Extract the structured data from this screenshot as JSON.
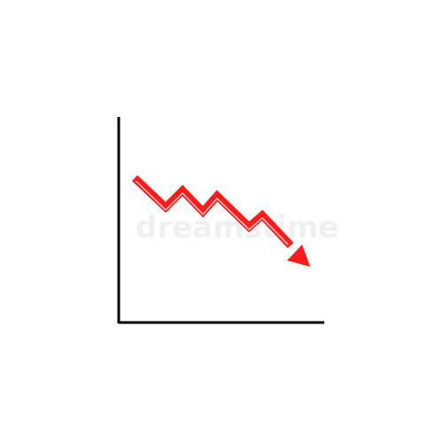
{
  "icon": {
    "name": "declining-chart-icon",
    "trend": "downward",
    "colors": {
      "axis": "#000000",
      "trend_line": "#ff1b1b",
      "highlight": "#ffd6d6",
      "background": "#ffffff"
    }
  },
  "watermark": {
    "text": "dreamstime"
  }
}
